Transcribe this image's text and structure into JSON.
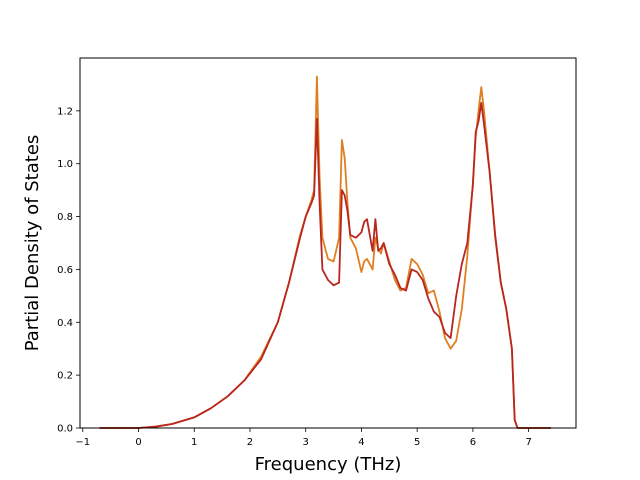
{
  "chart_data": {
    "type": "line",
    "title": "",
    "xlabel": "Frequency (THz)",
    "ylabel": "Partial Density of States",
    "xlim": [
      -1.05,
      7.85
    ],
    "ylim": [
      0.0,
      1.4
    ],
    "xticks": [
      -1,
      0,
      1,
      2,
      3,
      4,
      5,
      6,
      7
    ],
    "xtick_labels": [
      "−1",
      "0",
      "1",
      "2",
      "3",
      "4",
      "5",
      "6",
      "7"
    ],
    "yticks": [
      0.0,
      0.2,
      0.4,
      0.6,
      0.8,
      1.0,
      1.2
    ],
    "ytick_labels": [
      "0.0",
      "0.2",
      "0.4",
      "0.6",
      "0.8",
      "1.0",
      "1.2"
    ],
    "grid": false,
    "legend": null,
    "series": [
      {
        "color": "#e07f22",
        "x": [
          -0.7,
          0.0,
          0.3,
          0.6,
          1.0,
          1.3,
          1.6,
          1.9,
          2.2,
          2.5,
          2.7,
          2.9,
          3.0,
          3.1,
          3.15,
          3.2,
          3.25,
          3.3,
          3.4,
          3.5,
          3.6,
          3.65,
          3.7,
          3.75,
          3.8,
          3.9,
          4.0,
          4.05,
          4.1,
          4.2,
          4.25,
          4.3,
          4.35,
          4.4,
          4.5,
          4.6,
          4.7,
          4.8,
          4.9,
          5.0,
          5.1,
          5.2,
          5.3,
          5.4,
          5.5,
          5.6,
          5.7,
          5.8,
          5.9,
          6.0,
          6.05,
          6.1,
          6.15,
          6.2,
          6.3,
          6.4,
          6.5,
          6.6,
          6.7,
          6.75,
          6.8,
          7.0,
          7.4
        ],
        "y": [
          0.0,
          0.0,
          0.005,
          0.015,
          0.04,
          0.075,
          0.12,
          0.18,
          0.27,
          0.4,
          0.55,
          0.73,
          0.8,
          0.86,
          0.9,
          1.33,
          0.95,
          0.72,
          0.64,
          0.63,
          0.72,
          1.09,
          1.02,
          0.85,
          0.72,
          0.68,
          0.59,
          0.63,
          0.64,
          0.6,
          0.72,
          0.68,
          0.66,
          0.7,
          0.63,
          0.56,
          0.52,
          0.53,
          0.64,
          0.62,
          0.58,
          0.51,
          0.52,
          0.44,
          0.34,
          0.3,
          0.33,
          0.45,
          0.65,
          0.93,
          1.1,
          1.2,
          1.29,
          1.2,
          0.97,
          0.72,
          0.55,
          0.45,
          0.3,
          0.03,
          0.0,
          0.0,
          0.0
        ]
      },
      {
        "color": "#b8261f",
        "x": [
          -0.7,
          0.0,
          0.3,
          0.6,
          1.0,
          1.3,
          1.6,
          1.9,
          2.2,
          2.5,
          2.7,
          2.9,
          3.0,
          3.1,
          3.15,
          3.2,
          3.25,
          3.3,
          3.4,
          3.5,
          3.6,
          3.65,
          3.7,
          3.75,
          3.8,
          3.9,
          4.0,
          4.05,
          4.1,
          4.2,
          4.25,
          4.3,
          4.35,
          4.4,
          4.5,
          4.6,
          4.7,
          4.8,
          4.9,
          5.0,
          5.1,
          5.2,
          5.3,
          5.4,
          5.5,
          5.6,
          5.7,
          5.8,
          5.9,
          6.0,
          6.05,
          6.1,
          6.15,
          6.2,
          6.3,
          6.4,
          6.5,
          6.6,
          6.7,
          6.75,
          6.8,
          7.0,
          7.4
        ],
        "y": [
          0.0,
          0.0,
          0.005,
          0.015,
          0.04,
          0.075,
          0.12,
          0.18,
          0.26,
          0.4,
          0.55,
          0.72,
          0.8,
          0.85,
          0.88,
          1.17,
          0.85,
          0.6,
          0.56,
          0.54,
          0.55,
          0.9,
          0.88,
          0.82,
          0.73,
          0.72,
          0.74,
          0.78,
          0.79,
          0.67,
          0.79,
          0.67,
          0.68,
          0.7,
          0.62,
          0.58,
          0.53,
          0.52,
          0.6,
          0.59,
          0.56,
          0.49,
          0.44,
          0.42,
          0.36,
          0.34,
          0.5,
          0.62,
          0.7,
          0.92,
          1.12,
          1.16,
          1.23,
          1.15,
          0.97,
          0.73,
          0.55,
          0.45,
          0.3,
          0.03,
          0.0,
          0.0,
          0.0
        ]
      }
    ]
  }
}
